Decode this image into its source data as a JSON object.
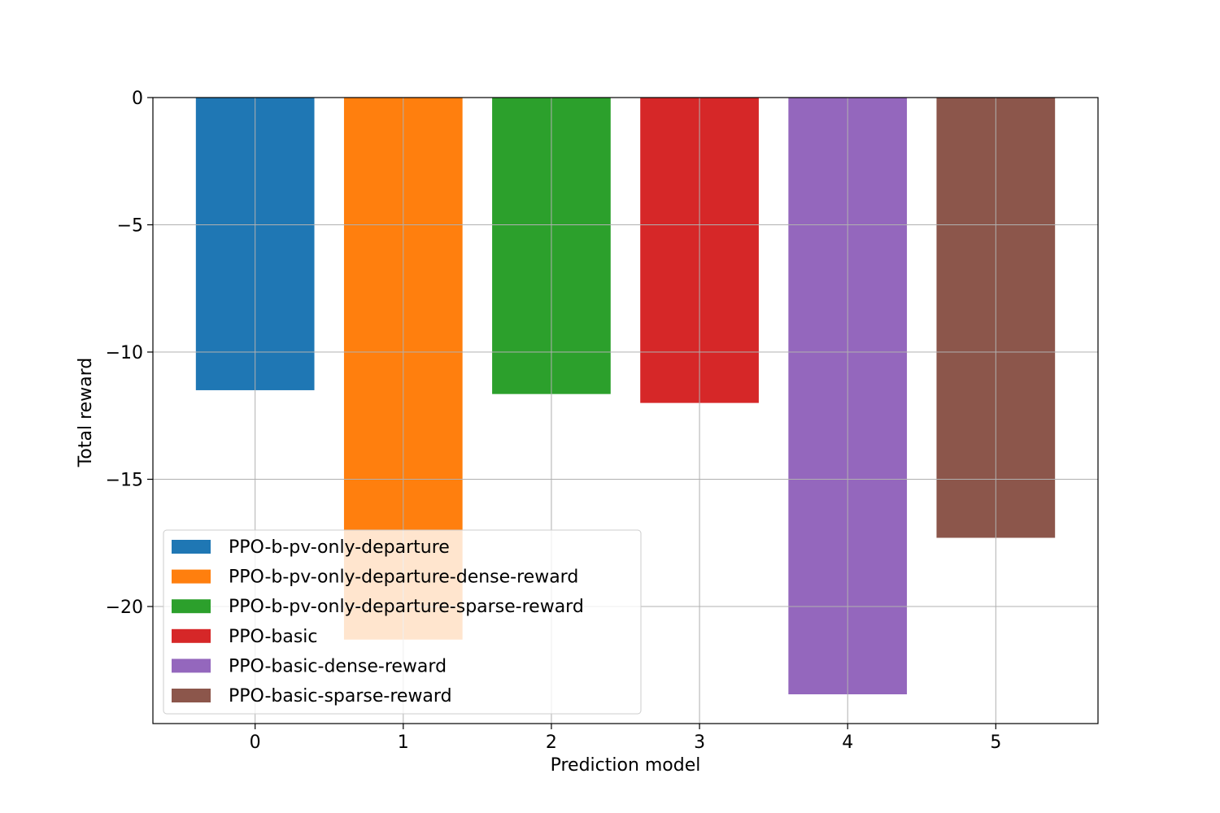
{
  "chart_data": {
    "type": "bar",
    "title": "",
    "xlabel": "Prediction model",
    "ylabel": "Total reward",
    "categories": [
      "0",
      "1",
      "2",
      "3",
      "4",
      "5"
    ],
    "values": [
      -11.5,
      -21.3,
      -11.65,
      -12.0,
      -23.45,
      -17.3
    ],
    "series_names": [
      "PPO-b-pv-only-departure",
      "PPO-b-pv-only-departure-dense-reward",
      "PPO-b-pv-only-departure-sparse-reward",
      "PPO-basic",
      "PPO-basic-dense-reward",
      "PPO-basic-sparse-reward"
    ],
    "colors": [
      "#1f77b4",
      "#ff7f0e",
      "#2ca02c",
      "#d62728",
      "#9467bd",
      "#8c564b"
    ],
    "ylim": [
      -24.6,
      0
    ],
    "xlim": [
      -0.69,
      5.69
    ],
    "yticks": [
      0,
      -5,
      -10,
      -15,
      -20
    ],
    "ytick_labels": [
      "0",
      "−5",
      "−10",
      "−15",
      "−20"
    ],
    "xticks": [
      0,
      1,
      2,
      3,
      4,
      5
    ],
    "xtick_labels": [
      "0",
      "1",
      "2",
      "3",
      "4",
      "5"
    ],
    "grid": true,
    "legend_position": "lower-left"
  }
}
